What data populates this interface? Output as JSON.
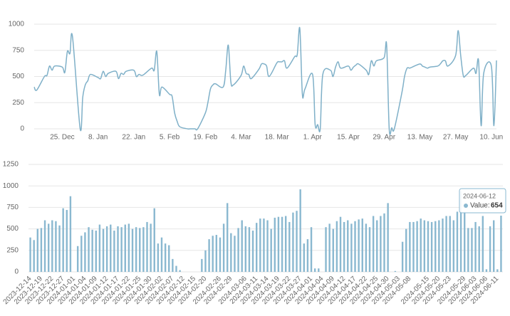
{
  "chart_data": [
    {
      "type": "line",
      "color": "#7fb0c8",
      "grid": true,
      "x": [
        "2023-12-14",
        "2023-12-15",
        "2023-12-18",
        "2023-12-19",
        "2023-12-20",
        "2023-12-21",
        "2023-12-22",
        "2023-12-25",
        "2023-12-26",
        "2023-12-27",
        "2023-12-28",
        "2023-12-29",
        "2024-01-01",
        "2024-01-02",
        "2024-01-03",
        "2024-01-04",
        "2024-01-05",
        "2024-01-08",
        "2024-01-09",
        "2024-01-10",
        "2024-01-11",
        "2024-01-12",
        "2024-01-15",
        "2024-01-16",
        "2024-01-17",
        "2024-01-18",
        "2024-01-19",
        "2024-01-22",
        "2024-01-23",
        "2024-01-24",
        "2024-01-25",
        "2024-01-26",
        "2024-01-29",
        "2024-01-30",
        "2024-01-31",
        "2024-02-01",
        "2024-02-02",
        "2024-02-05",
        "2024-02-06",
        "2024-02-07",
        "2024-02-08",
        "2024-02-09",
        "2024-02-12",
        "2024-02-13",
        "2024-02-14",
        "2024-02-15",
        "2024-02-16",
        "2024-02-19",
        "2024-02-20",
        "2024-02-21",
        "2024-02-22",
        "2024-02-23",
        "2024-02-26",
        "2024-02-27",
        "2024-02-28",
        "2024-02-29",
        "2024-03-01",
        "2024-03-04",
        "2024-03-05",
        "2024-03-06",
        "2024-03-07",
        "2024-03-08",
        "2024-03-11",
        "2024-03-12",
        "2024-03-13",
        "2024-03-14",
        "2024-03-15",
        "2024-03-18",
        "2024-03-19",
        "2024-03-20",
        "2024-03-21",
        "2024-03-22",
        "2024-03-25",
        "2024-03-26",
        "2024-03-27",
        "2024-03-28",
        "2024-03-29",
        "2024-04-01",
        "2024-04-02",
        "2024-04-03",
        "2024-04-04",
        "2024-04-05",
        "2024-04-08",
        "2024-04-09",
        "2024-04-10",
        "2024-04-11",
        "2024-04-12",
        "2024-04-15",
        "2024-04-16",
        "2024-04-17",
        "2024-04-18",
        "2024-04-19",
        "2024-04-22",
        "2024-04-23",
        "2024-04-24",
        "2024-04-25",
        "2024-04-26",
        "2024-04-29",
        "2024-04-30",
        "2024-05-01",
        "2024-05-02",
        "2024-05-03",
        "2024-05-06",
        "2024-05-07",
        "2024-05-08",
        "2024-05-09",
        "2024-05-10",
        "2024-05-13",
        "2024-05-14",
        "2024-05-15",
        "2024-05-16",
        "2024-05-17",
        "2024-05-20",
        "2024-05-21",
        "2024-05-22",
        "2024-05-23",
        "2024-05-24",
        "2024-05-27",
        "2024-05-28",
        "2024-05-29",
        "2024-05-30",
        "2024-05-31",
        "2024-06-03",
        "2024-06-04",
        "2024-06-05",
        "2024-06-06",
        "2024-06-07",
        "2024-06-10",
        "2024-06-11",
        "2024-06-12"
      ],
      "values": [
        400,
        370,
        500,
        510,
        600,
        560,
        600,
        590,
        540,
        740,
        720,
        880,
        0,
        300,
        420,
        460,
        520,
        490,
        480,
        550,
        500,
        530,
        550,
        480,
        530,
        520,
        550,
        560,
        500,
        520,
        510,
        520,
        580,
        560,
        740,
        330,
        400,
        330,
        310,
        150,
        70,
        20,
        0,
        0,
        0,
        0,
        0,
        150,
        250,
        380,
        420,
        430,
        400,
        560,
        800,
        450,
        420,
        510,
        600,
        530,
        520,
        480,
        570,
        620,
        620,
        600,
        500,
        630,
        640,
        640,
        650,
        580,
        690,
        710,
        960,
        330,
        380,
        520,
        40,
        40,
        0,
        520,
        560,
        500,
        590,
        640,
        580,
        600,
        560,
        590,
        610,
        620,
        560,
        520,
        650,
        600,
        650,
        680,
        800,
        0,
        10,
        0,
        350,
        500,
        580,
        580,
        590,
        620,
        600,
        590,
        580,
        590,
        600,
        620,
        650,
        650,
        600,
        700,
        940,
        700,
        510,
        510,
        580,
        530,
        650,
        30,
        530,
        600,
        30,
        654
      ],
      "xlim": [
        "2023-12-14",
        "2024-06-12"
      ],
      "xticks": [
        {
          "value": "2023-12-25",
          "label": "25. Dec"
        },
        {
          "value": "2024-01-08",
          "label": "8. Jan"
        },
        {
          "value": "2024-01-22",
          "label": "22. Jan"
        },
        {
          "value": "2024-02-05",
          "label": "5. Feb"
        },
        {
          "value": "2024-02-19",
          "label": "19. Feb"
        },
        {
          "value": "2024-03-04",
          "label": "4. Mar"
        },
        {
          "value": "2024-03-18",
          "label": "18. Mar"
        },
        {
          "value": "2024-04-01",
          "label": "1. Apr"
        },
        {
          "value": "2024-04-15",
          "label": "15. Apr"
        },
        {
          "value": "2024-04-29",
          "label": "29. Apr"
        },
        {
          "value": "2024-05-13",
          "label": "13. May"
        },
        {
          "value": "2024-05-27",
          "label": "27. May"
        },
        {
          "value": "2024-06-10",
          "label": "10. Jun"
        }
      ],
      "ylim": [
        0,
        1000
      ],
      "yticks": [
        0,
        250,
        500,
        750,
        1000
      ]
    },
    {
      "type": "bar",
      "color": "#8ab8d0",
      "grid": true,
      "categories": [
        "2023-12-14",
        null,
        null,
        "2023-12-19",
        null,
        null,
        "2023-12-22",
        null,
        null,
        "2023-12-27",
        null,
        null,
        "2024-01-01",
        null,
        null,
        "2024-01-04",
        null,
        null,
        "2024-01-09",
        null,
        null,
        "2024-01-12",
        null,
        null,
        "2024-01-17",
        null,
        null,
        "2024-01-22",
        null,
        null,
        "2024-01-25",
        null,
        null,
        "2024-01-30",
        null,
        null,
        "2024-02-02",
        null,
        null,
        "2024-02-07",
        null,
        null,
        "2024-02-12",
        null,
        null,
        "2024-02-15",
        null,
        null,
        "2024-02-20",
        null,
        null,
        null,
        "2024-02-26",
        null,
        null,
        "2024-02-29",
        null,
        null,
        null,
        "2024-03-06",
        null,
        null,
        "2024-03-11",
        null,
        null,
        "2024-03-14",
        null,
        null,
        "2024-03-19",
        null,
        null,
        "2024-03-22",
        null,
        null,
        "2024-03-27",
        null,
        null,
        "2024-04-01",
        null,
        null,
        "2024-04-04",
        null,
        null,
        "2024-04-09",
        null,
        null,
        "2024-04-12",
        null,
        null,
        "2024-04-17",
        null,
        null,
        "2024-04-22",
        null,
        null,
        "2024-04-25",
        null,
        null,
        "2024-04-30",
        null,
        null,
        "2024-05-03",
        null,
        null,
        "2024-05-08",
        null,
        null,
        null,
        null,
        "2024-05-15",
        null,
        null,
        "2024-05-20",
        null,
        null,
        "2024-05-23",
        null,
        null,
        null,
        "2024-05-29",
        null,
        null,
        "2024-06-03",
        null,
        null,
        "2024-06-06",
        null,
        null,
        "2024-06-11",
        null
      ],
      "values": [
        400,
        370,
        500,
        510,
        600,
        560,
        600,
        590,
        540,
        740,
        720,
        880,
        0,
        300,
        420,
        460,
        520,
        490,
        480,
        550,
        500,
        530,
        550,
        480,
        530,
        520,
        550,
        560,
        500,
        520,
        510,
        520,
        580,
        560,
        740,
        330,
        400,
        330,
        310,
        150,
        70,
        20,
        0,
        0,
        0,
        0,
        0,
        150,
        250,
        380,
        420,
        430,
        400,
        560,
        800,
        450,
        420,
        510,
        600,
        530,
        520,
        480,
        570,
        620,
        620,
        600,
        500,
        630,
        640,
        640,
        650,
        580,
        690,
        710,
        960,
        330,
        380,
        520,
        40,
        40,
        0,
        520,
        560,
        500,
        590,
        640,
        580,
        600,
        560,
        590,
        610,
        620,
        560,
        520,
        650,
        600,
        650,
        680,
        800,
        0,
        10,
        0,
        350,
        500,
        580,
        580,
        590,
        620,
        600,
        590,
        580,
        590,
        600,
        620,
        650,
        650,
        600,
        700,
        940,
        700,
        510,
        510,
        580,
        530,
        650,
        30,
        530,
        600,
        30,
        654
      ],
      "ylim": [
        0,
        1250
      ],
      "yticks": [
        0,
        250,
        500,
        750,
        1000,
        1250
      ],
      "tooltip": {
        "title": "2024-06-12",
        "label": "Value:",
        "value": 654
      }
    }
  ]
}
